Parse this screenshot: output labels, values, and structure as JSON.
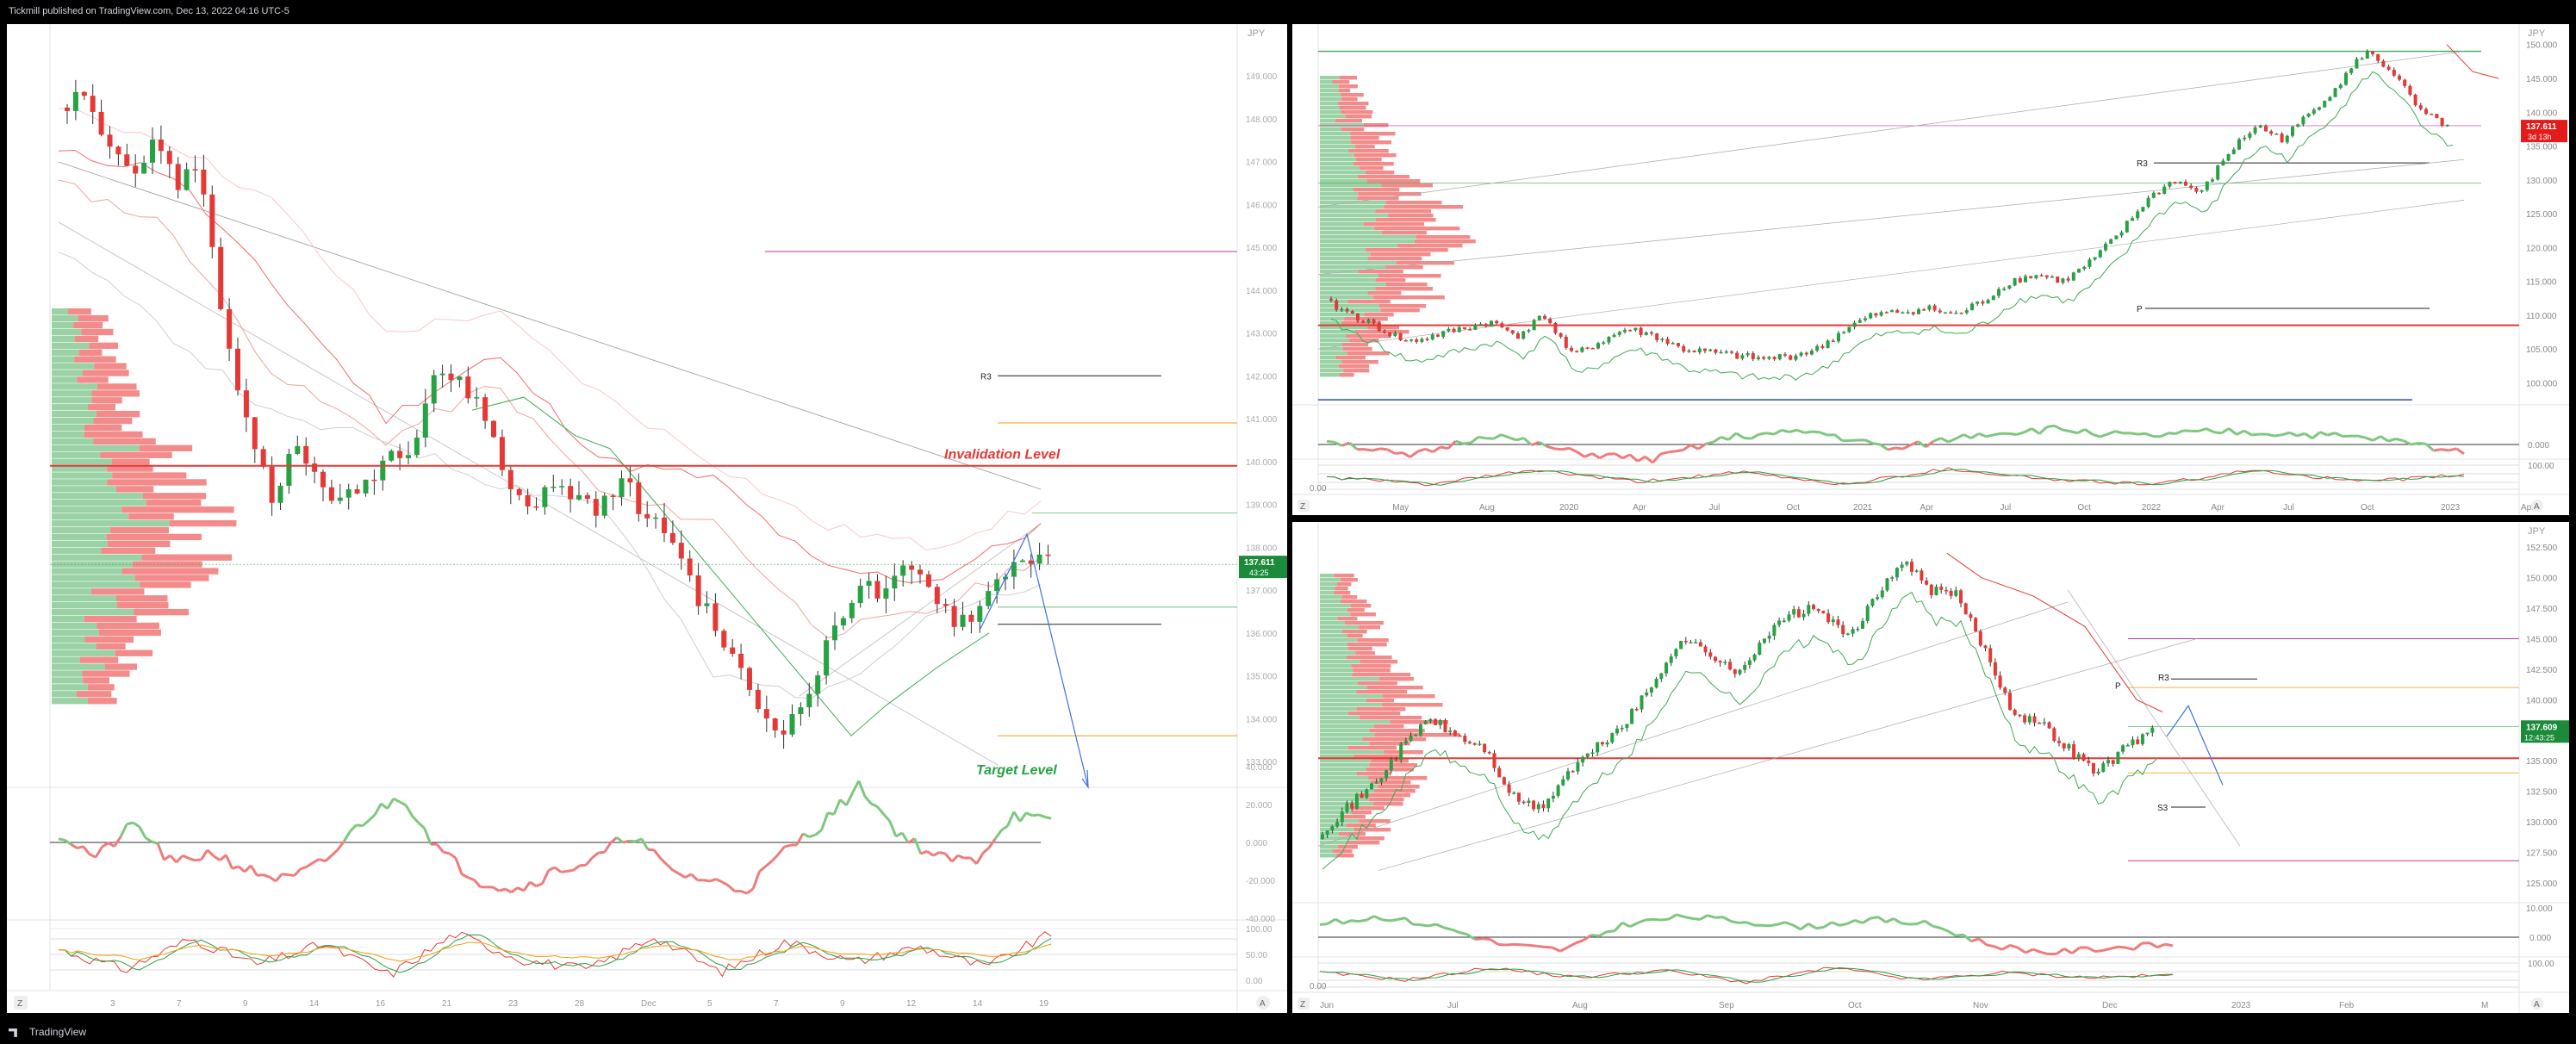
{
  "header": {
    "publisher": "Tickmill published on TradingView.com, Dec 13, 2022 04:16 UTC-5"
  },
  "footer": {
    "brand": "TradingView"
  },
  "colors": {
    "bull": "#26a243",
    "bear": "#e53935",
    "pivot": "#b8860b",
    "violet": "#c0369c",
    "blue": "#3b72e0"
  },
  "left_chart": {
    "currency": "JPY",
    "y_ticks": [
      "149.000",
      "148.000",
      "147.000",
      "146.000",
      "145.000",
      "144.000",
      "143.000",
      "142.000",
      "141.000",
      "140.000",
      "139.000",
      "138.000",
      "137.000",
      "136.000",
      "135.000",
      "134.000",
      "133.000"
    ],
    "x_ticks": [
      "3",
      "7",
      "9",
      "14",
      "16",
      "21",
      "23",
      "28",
      "Dec",
      "5",
      "7",
      "9",
      "12",
      "14",
      "19"
    ],
    "price_badge": {
      "price": "137.611",
      "time": "43:25"
    },
    "labels": {
      "r3": "R3",
      "invalidation": "Invalidation Level",
      "target": "Target Level"
    },
    "osc1_ticks": [
      "40.000",
      "20.000",
      "0.000",
      "-20.000",
      "-40.000"
    ],
    "osc2_ticks": [
      "100.00",
      "50.00",
      "0.00"
    ],
    "zoom_left": "Z",
    "zoom_right": "A"
  },
  "top_right_chart": {
    "currency": "JPY",
    "y_ticks": [
      "150.000",
      "145.000",
      "140.000",
      "135.000",
      "130.000",
      "125.000",
      "120.000",
      "115.000",
      "110.000",
      "105.000",
      "100.000"
    ],
    "x_ticks": [
      "May",
      "Aug",
      "2020",
      "Apr",
      "Jul",
      "Oct",
      "2021",
      "Apr",
      "Jul",
      "Oct",
      "2022",
      "Apr",
      "Jul",
      "Oct",
      "2023",
      "Apr"
    ],
    "price_badge": {
      "price": "137.611",
      "time": "3d 13h"
    },
    "labels": {
      "r3": "R3",
      "p": "P"
    },
    "osc1_ticks": [
      "0.000"
    ],
    "osc2_ticks": [
      "100.00",
      "0.00"
    ],
    "zoom_left": "Z",
    "zoom_right": "A"
  },
  "bottom_right_chart": {
    "currency": "JPY",
    "y_ticks": [
      "152.500",
      "150.000",
      "147.500",
      "145.000",
      "142.500",
      "140.000",
      "137.500",
      "135.000",
      "132.500",
      "130.000",
      "127.500",
      "125.000"
    ],
    "x_ticks": [
      "Jun",
      "Jul",
      "Aug",
      "Sep",
      "Oct",
      "Nov",
      "Dec",
      "2023",
      "Feb",
      "M"
    ],
    "price_badge": {
      "price": "137.609",
      "time": "12:43:25"
    },
    "labels": {
      "r3": "R3",
      "p": "P",
      "s3": "S3"
    },
    "osc1_ticks": [
      "10.000",
      "0.000"
    ],
    "osc2_ticks": [
      "100.00",
      "0.00"
    ],
    "zoom_left": "Z",
    "zoom_right": "A"
  }
}
